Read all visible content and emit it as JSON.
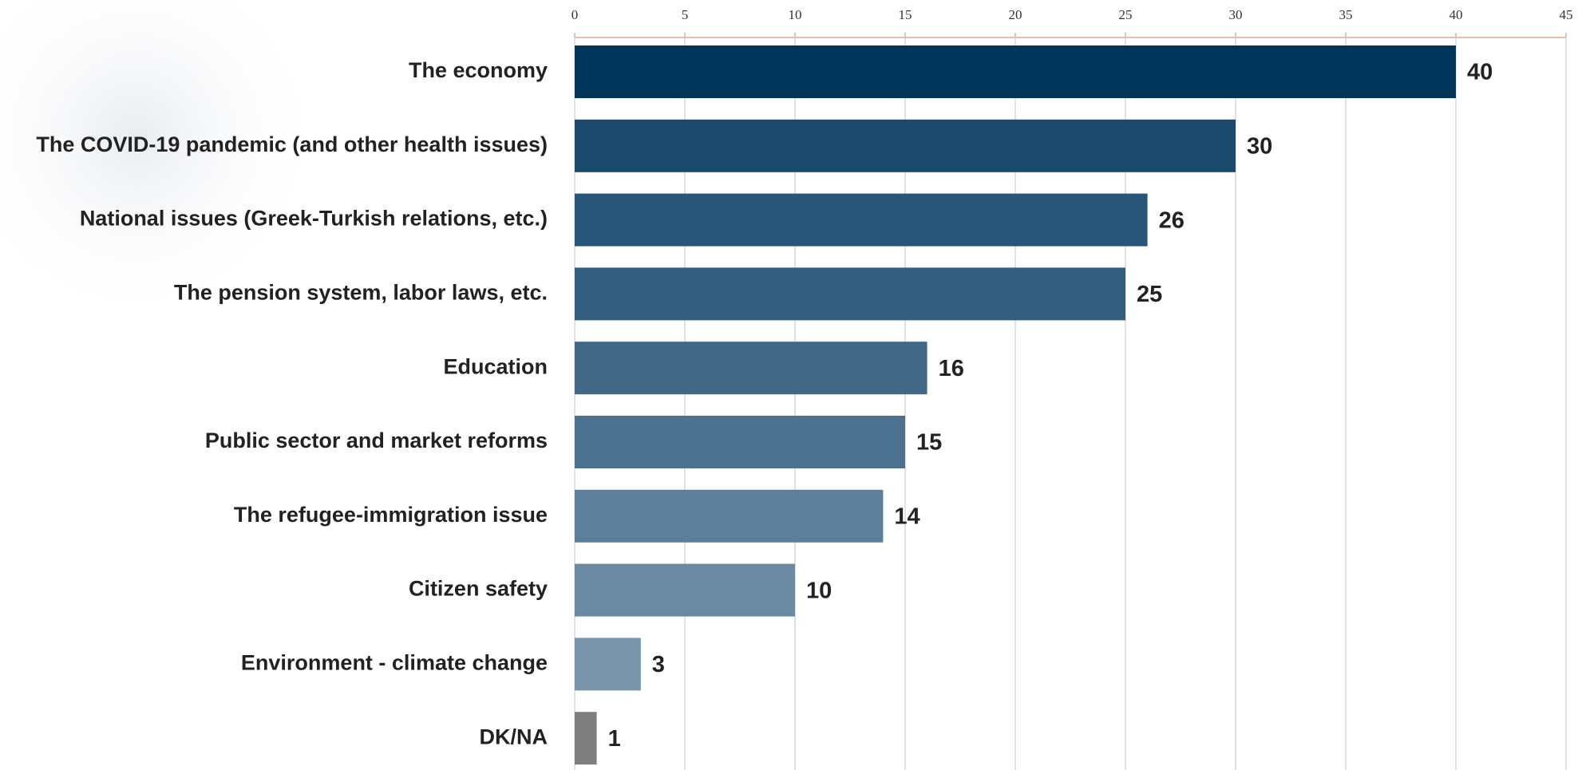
{
  "chart_data": {
    "type": "hbar",
    "categories": [
      "The economy",
      "The COVID-19 pandemic (and other health issues)",
      "National issues (Greek-Turkish relations, etc.)",
      "The pension system, labor laws, etc.",
      "Education",
      "Public sector and market reforms",
      "The refugee-immigration issue",
      "Citizen safety",
      "Environment - climate change",
      "DK/NA"
    ],
    "values": [
      40,
      30,
      26,
      25,
      16,
      15,
      14,
      10,
      3,
      1
    ],
    "colors": [
      "#003459",
      "#1c4a6d",
      "#28557a",
      "#335e80",
      "#426888",
      "#4d7290",
      "#5d7f99",
      "#6a8aa3",
      "#7a95aa",
      "#7f7f7f"
    ],
    "xlim": [
      0,
      45
    ],
    "xticks": [
      0,
      5,
      10,
      15,
      20,
      25,
      30,
      35,
      40,
      45
    ],
    "grid": true
  }
}
